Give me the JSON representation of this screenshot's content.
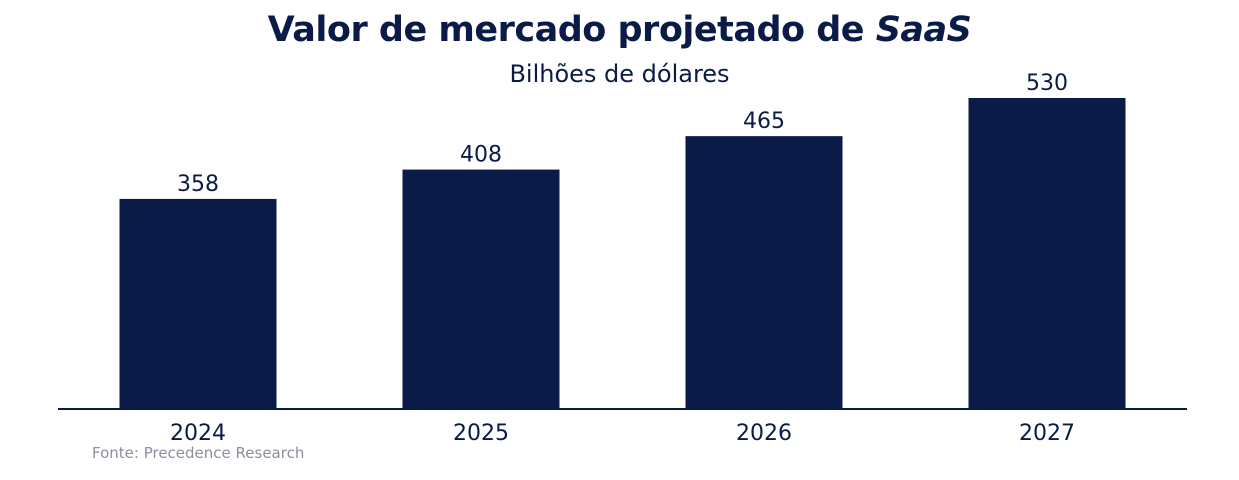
{
  "chart_data": {
    "type": "bar",
    "title_main": "Valor de mercado projetado de ",
    "title_emphasis": "SaaS",
    "subtitle": "Bilhões de dólares",
    "categories": [
      "2024",
      "2025",
      "2026",
      "2027"
    ],
    "values": [
      358,
      408,
      465,
      530
    ],
    "value_labels": [
      "358",
      "408",
      "465",
      "530"
    ],
    "bar_color": "#0b1b47",
    "axis_color": "#0b1b47",
    "text_color": "#0b1b47",
    "source_color": "#8a8f9e",
    "grid": false,
    "legend": "none"
  },
  "source": "Fonte: Precedence Research"
}
